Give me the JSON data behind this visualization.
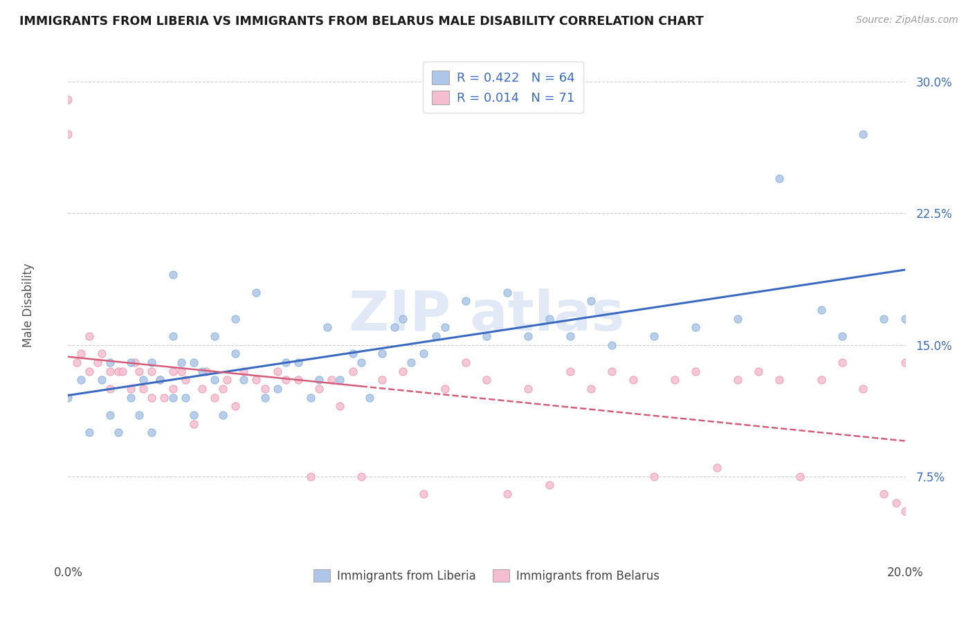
{
  "title": "IMMIGRANTS FROM LIBERIA VS IMMIGRANTS FROM BELARUS MALE DISABILITY CORRELATION CHART",
  "source": "Source: ZipAtlas.com",
  "ylabel": "Male Disability",
  "xlim": [
    0.0,
    0.2
  ],
  "ylim": [
    0.03,
    0.315
  ],
  "yticks": [
    0.075,
    0.15,
    0.225,
    0.3
  ],
  "ytick_labels": [
    "7.5%",
    "15.0%",
    "22.5%",
    "30.0%"
  ],
  "legend_R1": "0.422",
  "legend_N1": "64",
  "legend_R2": "0.014",
  "legend_N2": "71",
  "color_liberia_fill": "#aec6e8",
  "color_liberia_edge": "#7aafd4",
  "color_liberia_line": "#3a6abf",
  "color_belarus_fill": "#f5bdd0",
  "color_belarus_edge": "#e891a8",
  "color_belarus_line": "#d45c7a",
  "background_color": "#ffffff",
  "liberia_x": [
    0.0,
    0.003,
    0.005,
    0.008,
    0.01,
    0.01,
    0.012,
    0.015,
    0.015,
    0.017,
    0.018,
    0.02,
    0.02,
    0.022,
    0.025,
    0.025,
    0.025,
    0.027,
    0.028,
    0.03,
    0.03,
    0.032,
    0.035,
    0.035,
    0.037,
    0.04,
    0.04,
    0.042,
    0.045,
    0.047,
    0.05,
    0.052,
    0.055,
    0.058,
    0.06,
    0.062,
    0.065,
    0.068,
    0.07,
    0.072,
    0.075,
    0.078,
    0.08,
    0.082,
    0.085,
    0.088,
    0.09,
    0.095,
    0.1,
    0.105,
    0.11,
    0.115,
    0.12,
    0.125,
    0.13,
    0.14,
    0.15,
    0.16,
    0.17,
    0.18,
    0.185,
    0.19,
    0.195,
    0.2
  ],
  "liberia_y": [
    0.12,
    0.13,
    0.1,
    0.13,
    0.11,
    0.14,
    0.1,
    0.12,
    0.14,
    0.11,
    0.13,
    0.1,
    0.14,
    0.13,
    0.12,
    0.155,
    0.19,
    0.14,
    0.12,
    0.11,
    0.14,
    0.135,
    0.13,
    0.155,
    0.11,
    0.145,
    0.165,
    0.13,
    0.18,
    0.12,
    0.125,
    0.14,
    0.14,
    0.12,
    0.13,
    0.16,
    0.13,
    0.145,
    0.14,
    0.12,
    0.145,
    0.16,
    0.165,
    0.14,
    0.145,
    0.155,
    0.16,
    0.175,
    0.155,
    0.18,
    0.155,
    0.165,
    0.155,
    0.175,
    0.15,
    0.155,
    0.16,
    0.165,
    0.245,
    0.17,
    0.155,
    0.27,
    0.165,
    0.165
  ],
  "belarus_x": [
    0.0,
    0.0,
    0.002,
    0.003,
    0.005,
    0.005,
    0.007,
    0.008,
    0.01,
    0.01,
    0.012,
    0.013,
    0.015,
    0.016,
    0.017,
    0.018,
    0.02,
    0.02,
    0.022,
    0.023,
    0.025,
    0.025,
    0.027,
    0.028,
    0.03,
    0.032,
    0.033,
    0.035,
    0.037,
    0.038,
    0.04,
    0.042,
    0.045,
    0.047,
    0.05,
    0.052,
    0.055,
    0.058,
    0.06,
    0.063,
    0.065,
    0.068,
    0.07,
    0.075,
    0.08,
    0.085,
    0.09,
    0.095,
    0.1,
    0.105,
    0.11,
    0.115,
    0.12,
    0.125,
    0.13,
    0.135,
    0.14,
    0.145,
    0.15,
    0.155,
    0.16,
    0.165,
    0.17,
    0.175,
    0.18,
    0.185,
    0.19,
    0.195,
    0.198,
    0.2,
    0.2
  ],
  "belarus_y": [
    0.29,
    0.27,
    0.14,
    0.145,
    0.135,
    0.155,
    0.14,
    0.145,
    0.135,
    0.125,
    0.135,
    0.135,
    0.125,
    0.14,
    0.135,
    0.125,
    0.12,
    0.135,
    0.13,
    0.12,
    0.135,
    0.125,
    0.135,
    0.13,
    0.105,
    0.125,
    0.135,
    0.12,
    0.125,
    0.13,
    0.115,
    0.135,
    0.13,
    0.125,
    0.135,
    0.13,
    0.13,
    0.075,
    0.125,
    0.13,
    0.115,
    0.135,
    0.075,
    0.13,
    0.135,
    0.065,
    0.125,
    0.14,
    0.13,
    0.065,
    0.125,
    0.07,
    0.135,
    0.125,
    0.135,
    0.13,
    0.075,
    0.13,
    0.135,
    0.08,
    0.13,
    0.135,
    0.13,
    0.075,
    0.13,
    0.14,
    0.125,
    0.065,
    0.06,
    0.14,
    0.055
  ]
}
